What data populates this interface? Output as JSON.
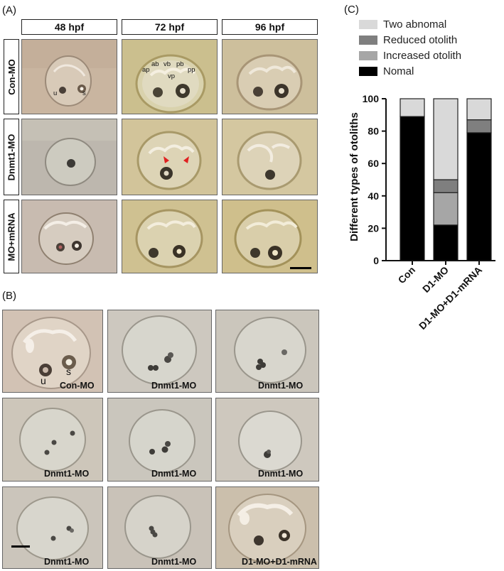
{
  "panels": {
    "a": "(A)",
    "b": "(B)",
    "c": "(C)"
  },
  "panel_a": {
    "time_points": [
      "48 hpf",
      "72 hpf",
      "96 hpf"
    ],
    "rows": [
      "Con-MO",
      "Dnmt1-MO",
      "MO+mRNA"
    ],
    "labels_48": {
      "u": "u",
      "s": "s"
    },
    "labels_72": {
      "ap": "ap",
      "ab": "ab",
      "vb": "vb",
      "pb": "pb",
      "pp": "pp",
      "vp": "vp"
    }
  },
  "panel_b": {
    "captions": [
      "Con-MO",
      "Dnmt1-MO",
      "Dnmt1-MO",
      "Dnmt1-MO",
      "Dnmt1-MO",
      "Dnmt1-MO",
      "Dnmt1-MO",
      "Dnmt1-MO",
      "D1-MO+D1-mRNA"
    ],
    "labels": {
      "u": "u",
      "s": "s"
    }
  },
  "chart_data": {
    "type": "bar",
    "stacked": true,
    "categories": [
      "Con",
      "D1-MO",
      "D1-MO+D1-mRNA"
    ],
    "series": [
      {
        "name": "Nomal",
        "values": [
          89,
          22,
          79
        ],
        "color": "#000000"
      },
      {
        "name": "Increased otolith",
        "values": [
          0,
          20,
          0
        ],
        "color": "#a6a6a6"
      },
      {
        "name": "Reduced otolith",
        "values": [
          0,
          8,
          8
        ],
        "color": "#7f7f7f"
      },
      {
        "name": "Two abnomal",
        "values": [
          11,
          50,
          13
        ],
        "color": "#d9d9d9"
      }
    ],
    "legend_order": [
      "Two abnomal",
      "Reduced otolith",
      "Increased otolith",
      "Nomal"
    ],
    "legend_position": "top",
    "ylabel": "Different types of otoliths",
    "ylim": [
      0,
      100
    ],
    "yticks": [
      0,
      20,
      40,
      60,
      80,
      100
    ]
  }
}
